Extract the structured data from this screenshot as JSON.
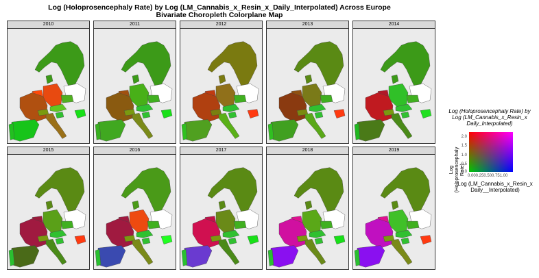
{
  "title": {
    "line1": "Log (Holoprosencephaly Rate) by Log (LM_Cannabis_x_Resin_x_Daily_Interpolated) Across Europe",
    "line2": "Bivariate Choropleth Colorplane Map"
  },
  "panels": [
    {
      "year": "2010",
      "colors": {
        "scand": "#3c9a18",
        "iberia": "#17c41a",
        "portugal": "#22c020",
        "france": "#b05010",
        "germany": "#e84a10",
        "italy": "#9a7018",
        "belgium": "#ff4a08",
        "swiss": "#7a9a10",
        "austria": "#60c820",
        "czech": "#50b020",
        "slovenia": "#30c030",
        "hungary": "#18e018",
        "poland": "none",
        "denmark": "#3c9a18"
      }
    },
    {
      "year": "2011",
      "colors": {
        "scand": "#3c9a18",
        "iberia": "#40a820",
        "portugal": "#38b020",
        "france": "#8a5a10",
        "germany": "#48b018",
        "italy": "#7a8a18",
        "belgium": "#a05010",
        "swiss": "#7a9a10",
        "austria": "#30c030",
        "czech": "#40b020",
        "slovenia": "#30c030",
        "hungary": "#18e018",
        "poland": "none",
        "denmark": "#3c9a18"
      }
    },
    {
      "year": "2012",
      "colors": {
        "scand": "#7a7a10",
        "iberia": "#50a020",
        "portugal": "#30c020",
        "france": "#b04010",
        "germany": "#90701a",
        "italy": "#5ab018",
        "belgium": "#c03a10",
        "swiss": "#7a8010",
        "austria": "#30c030",
        "czech": "#40b020",
        "slovenia": "#30c030",
        "hungary": "#ff3a10",
        "poland": "none",
        "denmark": "#7a7a10"
      }
    },
    {
      "year": "2013",
      "colors": {
        "scand": "#5a8a14",
        "iberia": "#40a020",
        "portugal": "#30c020",
        "france": "#8a3a10",
        "germany": "#7a7a18",
        "italy": "#5aa818",
        "belgium": "#905010",
        "swiss": "#7a8a10",
        "austria": "#30c030",
        "czech": "#40b020",
        "slovenia": "#30c030",
        "hungary": "#ff3a10",
        "poland": "none",
        "denmark": "#5a8a14"
      }
    },
    {
      "year": "2014",
      "colors": {
        "scand": "#3c9a18",
        "iberia": "#4a7a18",
        "portugal": "#20b820",
        "france": "#c01a20",
        "germany": "#30c028",
        "italy": "#4a8a18",
        "belgium": "#b01828",
        "swiss": "#7a9a10",
        "austria": "#30c030",
        "czech": "#40b020",
        "slovenia": "#30c030",
        "hungary": "#20e020",
        "poland": "none",
        "denmark": "#3c9a18"
      }
    },
    {
      "year": "2015",
      "colors": {
        "scand": "#5a8a14",
        "iberia": "#4a6a18",
        "portugal": "#2ac030",
        "france": "#a01a40",
        "germany": "#5aa018",
        "italy": "#4a8a18",
        "belgium": "#9a1a3a",
        "swiss": "#7a9a10",
        "austria": "#30c030",
        "czech": "#40b020",
        "slovenia": "#30c030",
        "hungary": "#ff3a10",
        "poland": "none",
        "denmark": "#5a8a14"
      }
    },
    {
      "year": "2016",
      "colors": {
        "scand": "#4a9a18",
        "iberia": "#3a4ab0",
        "portugal": "#2ac030",
        "france": "#a01a40",
        "germany": "#ee4a10",
        "italy": "#7a8a18",
        "belgium": "#a01a40",
        "swiss": "#7a9a10",
        "austria": "#30c030",
        "czech": "#40b020",
        "slovenia": "#30c030",
        "hungary": "#20ff20",
        "poland": "none",
        "denmark": "#4a9a18"
      }
    },
    {
      "year": "2017",
      "colors": {
        "scand": "#5a8a14",
        "iberia": "#6a3ad0",
        "portugal": "#2ac030",
        "france": "#d01050",
        "germany": "#6a8a18",
        "italy": "#4a8a18",
        "belgium": "#c01048",
        "swiss": "#7a9a10",
        "austria": "#30c030",
        "czech": "#40b020",
        "slovenia": "#30c030",
        "hungary": "#18e018",
        "poland": "none",
        "denmark": "#5a8a14"
      }
    },
    {
      "year": "2018",
      "colors": {
        "scand": "#5a8a14",
        "iberia": "#8a10f0",
        "portugal": "#2ac030",
        "france": "#d010a0",
        "germany": "#5aa818",
        "italy": "#6a8a18",
        "belgium": "#e01090",
        "swiss": "#7a9a10",
        "austria": "#30c030",
        "czech": "#40b020",
        "slovenia": "#30c030",
        "hungary": "#18e018",
        "poland": "none",
        "denmark": "#5a8a14"
      }
    },
    {
      "year": "2019",
      "colors": {
        "scand": "#5a8a14",
        "iberia": "#8a10f0",
        "portugal": "#2ac030",
        "france": "#c010c0",
        "germany": "#40c028",
        "italy": "#7a8a18",
        "belgium": "#e01090",
        "swiss": "#7a9a10",
        "austria": "#30c030",
        "czech": "#40b020",
        "slovenia": "#30c030",
        "hungary": "#ff3a10",
        "poland": "none",
        "denmark": "#5a8a14"
      }
    }
  ],
  "legend": {
    "title_line1": "Log (Holoprosencephaly Rate) by",
    "title_line2": "Log (LM_Cannabis_x_Resin_x",
    "title_line3": "Daily_Interpolated)",
    "y_label_line1": "Log",
    "y_label_line2": "(Holoprosencephaly",
    "y_label_line3": "Rate)",
    "x_label_line1": "Log (LM_Cannabis_x_Resin_x",
    "x_label_line2": "Daily__Interpolated)",
    "y_ticks": [
      "2.0",
      "1.5",
      "1.0",
      "0.5",
      "0.0"
    ],
    "x_ticks": "0.000.250.500.751.00",
    "corner_colors": {
      "bottom_left": "#00c800",
      "bottom_right": "#0000ff",
      "top_left": "#ff0000",
      "top_right": "#ff00ff"
    }
  }
}
